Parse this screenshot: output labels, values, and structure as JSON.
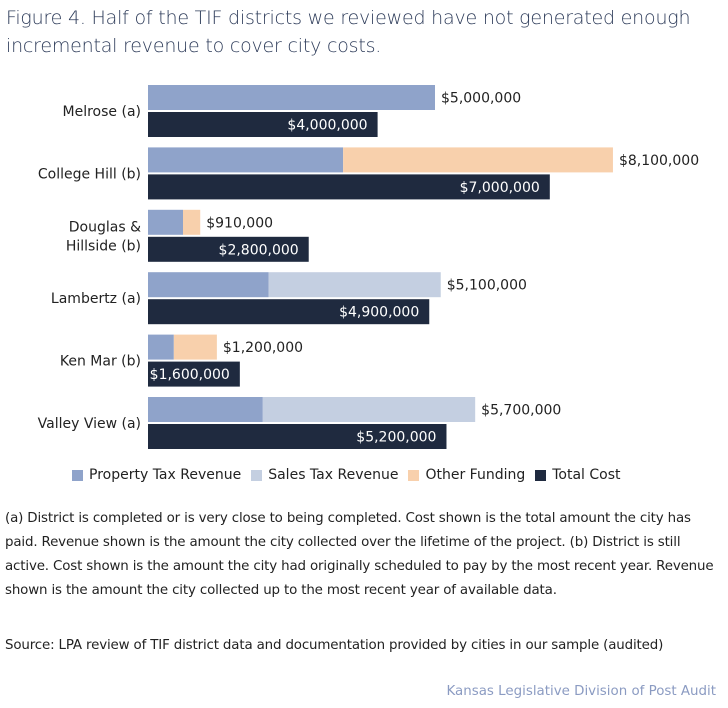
{
  "title": "Figure 4. Half of the TIF districts we reviewed have not generated enough incremental revenue to cover city costs.",
  "colors": {
    "property_tax": "#8fa3ca",
    "sales_tax": "#c4cfe1",
    "other_funding": "#f8d0ac",
    "total_cost": "#1f2a3f"
  },
  "chart_data": {
    "type": "bar",
    "orientation": "horizontal",
    "stacked_revenue": true,
    "title": "Figure 4. Half of the TIF districts we reviewed have not generated enough incremental revenue to cover city costs.",
    "xlabel": "",
    "ylabel": "",
    "xlim": [
      0,
      9000000
    ],
    "grid": false,
    "legend_position": "bottom",
    "categories": [
      "Melrose (a)",
      "College Hill (b)",
      "Douglas & Hillside (b)",
      "Lambertz (a)",
      "Ken Mar (b)",
      "Valley View (a)"
    ],
    "category_lines": [
      [
        "Melrose (a)"
      ],
      [
        "College Hill (b)"
      ],
      [
        "Douglas &",
        "Hillside (b)"
      ],
      [
        "Lambertz (a)"
      ],
      [
        "Ken Mar (b)"
      ],
      [
        "Valley View (a)"
      ]
    ],
    "series": [
      {
        "name": "Property Tax Revenue",
        "key": "property_tax",
        "values": [
          5000000,
          3400000,
          610000,
          2100000,
          450000,
          2000000
        ]
      },
      {
        "name": "Sales Tax Revenue",
        "key": "sales_tax",
        "values": [
          0,
          0,
          0,
          3000000,
          0,
          3700000
        ]
      },
      {
        "name": "Other Funding",
        "key": "other_funding",
        "values": [
          0,
          4700000,
          300000,
          0,
          750000,
          0
        ]
      },
      {
        "name": "Total Cost",
        "key": "total_cost",
        "values": [
          4000000,
          7000000,
          2800000,
          4900000,
          1600000,
          5200000
        ]
      }
    ],
    "revenue_totals": [
      5000000,
      8100000,
      910000,
      5100000,
      1200000,
      5700000
    ],
    "revenue_labels": [
      "$5,000,000",
      "$8,100,000",
      "$910,000",
      "$5,100,000",
      "$1,200,000",
      "$5,700,000"
    ],
    "cost_labels": [
      "$4,000,000",
      "$7,000,000",
      "$2,800,000",
      "$4,900,000",
      "$1,600,000",
      "$5,200,000"
    ]
  },
  "legend": [
    {
      "label": "Property Tax Revenue",
      "key": "property_tax"
    },
    {
      "label": "Sales Tax Revenue",
      "key": "sales_tax"
    },
    {
      "label": "Other Funding",
      "key": "other_funding"
    },
    {
      "label": "Total Cost",
      "key": "total_cost"
    }
  ],
  "notes": "(a) District is completed or is very close to being completed. Cost shown is the total amount the city has paid. Revenue shown is the amount the city collected over the lifetime of the project. (b) District is still active. Cost shown is the amount the city had originally scheduled to pay by the most recent year. Revenue shown is the amount the city collected up to the most recent year of available data.",
  "source": "Source: LPA review of TIF district data and documentation provided by cities in our sample (audited)",
  "credit": "Kansas Legislative Division of Post Audit"
}
